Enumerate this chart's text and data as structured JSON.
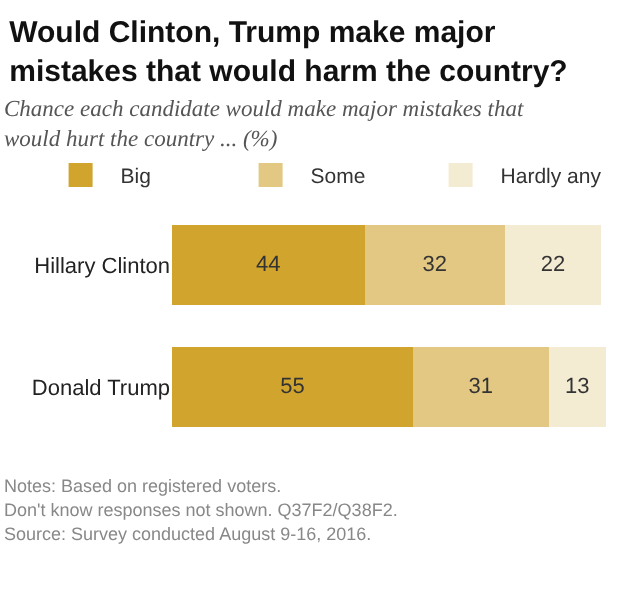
{
  "chart_data": {
    "type": "bar",
    "orientation": "horizontal",
    "stacked": true,
    "data_labels": true,
    "title": "Would Clinton, Trump make major mistakes that would harm the country?",
    "subtitle": "Chance each candidate would make major mistakes that would hurt the country ... (%)",
    "categories": [
      "Hillary Clinton",
      "Donald Trump"
    ],
    "series": [
      {
        "name": "Big",
        "color": "#d1a42e",
        "values": [
          44,
          55
        ]
      },
      {
        "name": "Some",
        "color": "#e2c882",
        "values": [
          32,
          31
        ]
      },
      {
        "name": "Hardly any",
        "color": "#f4ebd3",
        "values": [
          22,
          13
        ]
      }
    ],
    "xlim": [
      0,
      100
    ],
    "tick_labels": "y",
    "legend": "top",
    "annotations": [
      "Notes: Based on registered voters.",
      "Don't know responses not shown. Q37F2/Q38F2.",
      "Source: Survey conducted August 9-16, 2016."
    ]
  }
}
